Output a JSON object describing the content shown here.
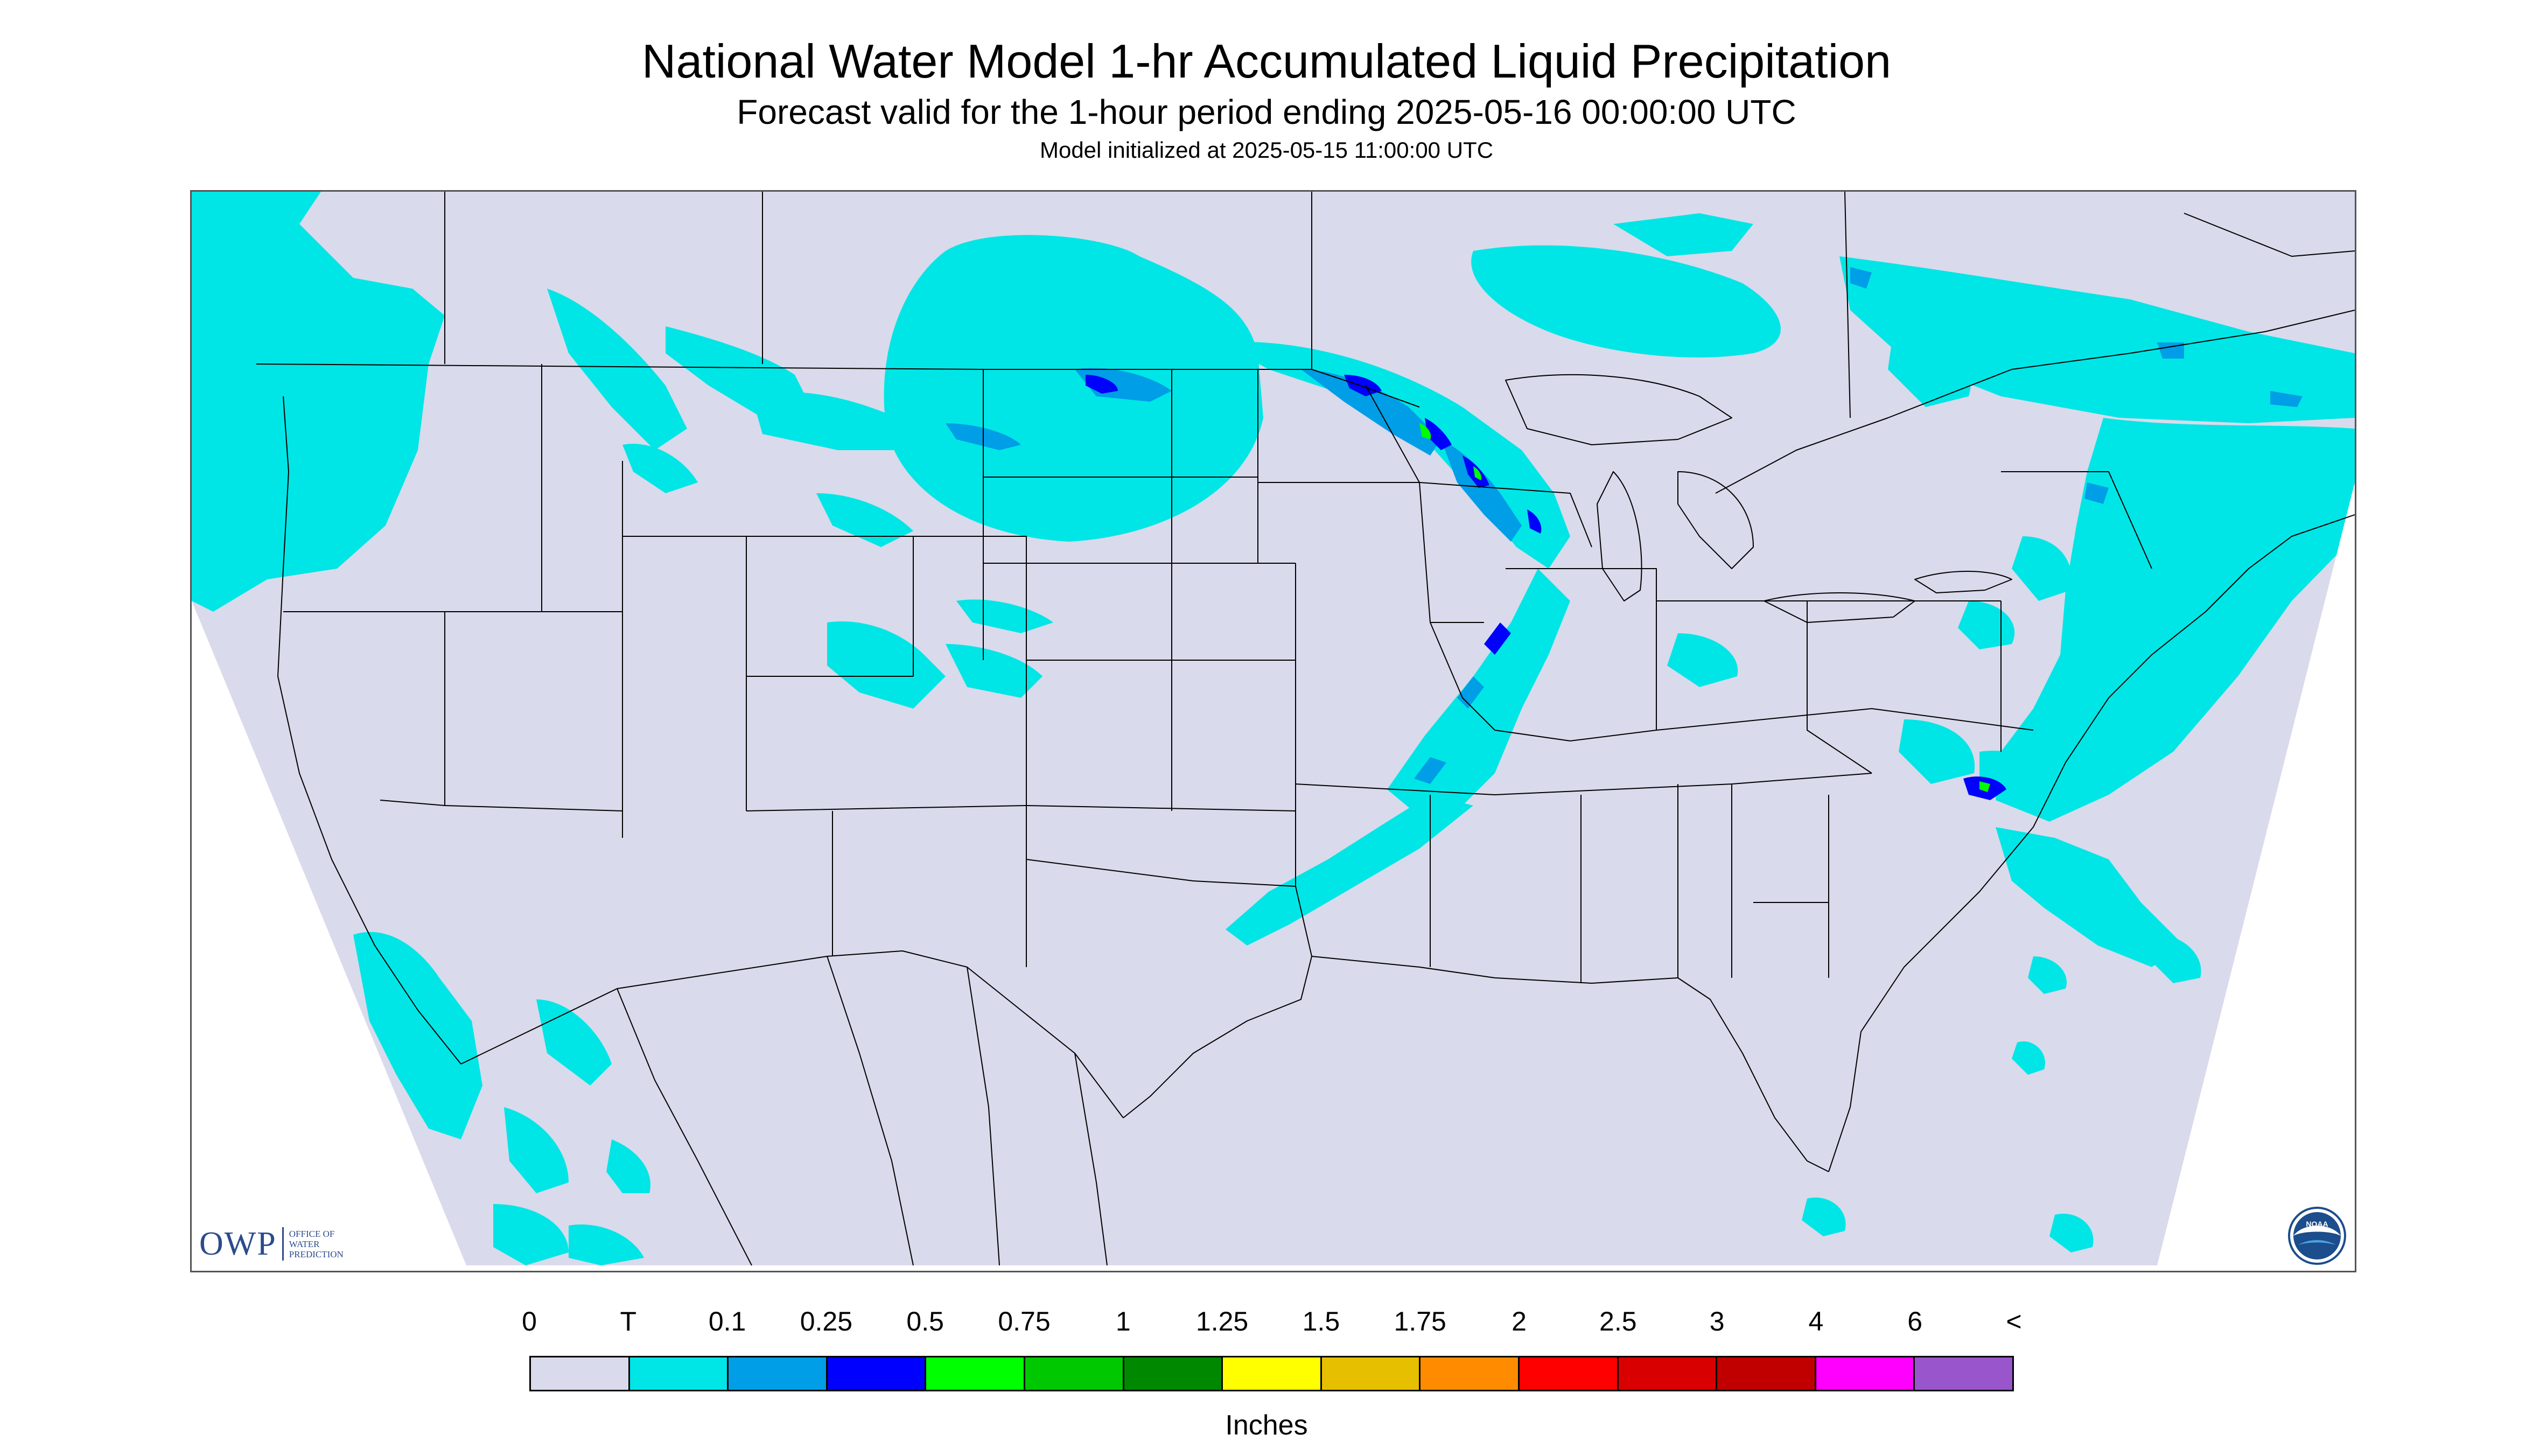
{
  "header": {
    "title": "National Water Model 1-hr Accumulated Liquid Precipitation",
    "subtitle": "Forecast valid for the 1-hour period ending 2025-05-16 00:00:00 UTC",
    "init_line": "Model initialized at 2025-05-15 11:00:00 UTC"
  },
  "map": {
    "projection": "Lambert Conformal Conic",
    "domain_color": "#d9daeb",
    "outside_color": "#ffffff",
    "boundary_line_color": "#000000",
    "precip_bands": [
      {
        "band": "T",
        "color": "#00e6e6"
      },
      {
        "band": "0.25",
        "color": "#0000ff"
      },
      {
        "band": "0.5",
        "color": "#00ff00"
      },
      {
        "band": "1",
        "color": "#008800"
      }
    ]
  },
  "logos": {
    "owp_word": "OWP",
    "owp_org": "Office of Water Prediction",
    "noaa_word": "NOAA",
    "noaa_icon": "noaa-seal-icon"
  },
  "legend": {
    "labels": [
      "0",
      "T",
      "0.1",
      "0.25",
      "0.5",
      "0.75",
      "1",
      "1.25",
      "1.5",
      "1.75",
      "2",
      "2.5",
      "3",
      "4",
      "6",
      "<"
    ],
    "colors": [
      "#d9daeb",
      "#00e6e6",
      "#009ee6",
      "#0000ff",
      "#00ff00",
      "#00c800",
      "#008800",
      "#ffff00",
      "#e6c000",
      "#ff8c00",
      "#ff0000",
      "#d80000",
      "#c00000",
      "#ff00ff",
      "#9955cc"
    ],
    "units": "Inches"
  }
}
